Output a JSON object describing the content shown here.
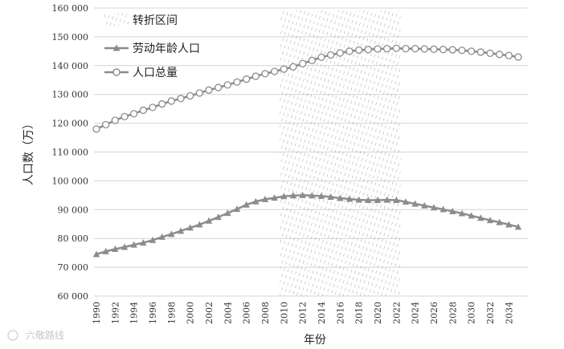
{
  "chart_data": {
    "type": "line",
    "xlabel": "年份",
    "ylabel": "人口数（万）",
    "ylim": [
      60000,
      160000
    ],
    "xlim": [
      1990,
      2035
    ],
    "y_ticks": [
      "60 000",
      "70 000",
      "80 000",
      "90 000",
      "100 000",
      "110 000",
      "120 000",
      "130 000",
      "140 000",
      "150 000",
      "160 000"
    ],
    "x_ticks": [
      "1990",
      "1992",
      "1994",
      "1996",
      "1998",
      "2000",
      "2002",
      "2004",
      "2006",
      "2008",
      "2010",
      "2012",
      "2014",
      "2016",
      "2018",
      "2020",
      "2022",
      "2024",
      "2026",
      "2028",
      "2030",
      "2032",
      "2034"
    ],
    "grid": true,
    "legend_position": "top-left",
    "shaded_region": {
      "name": "转折区间",
      "x_range": [
        2010,
        2022
      ]
    },
    "x": [
      1990,
      1991,
      1992,
      1993,
      1994,
      1995,
      1996,
      1997,
      1998,
      1999,
      2000,
      2001,
      2002,
      2003,
      2004,
      2005,
      2006,
      2007,
      2008,
      2009,
      2010,
      2011,
      2012,
      2013,
      2014,
      2015,
      2016,
      2017,
      2018,
      2019,
      2020,
      2021,
      2022,
      2023,
      2024,
      2025,
      2026,
      2027,
      2028,
      2029,
      2030,
      2031,
      2032,
      2033,
      2034,
      2035
    ],
    "series": [
      {
        "name": "劳动年龄人口",
        "marker": "triangle",
        "values": [
          74500,
          75500,
          76300,
          77000,
          77800,
          78500,
          79400,
          80500,
          81500,
          82600,
          83700,
          84800,
          86100,
          87400,
          88800,
          90200,
          91700,
          92800,
          93600,
          94100,
          94600,
          94900,
          95000,
          94900,
          94700,
          94400,
          94000,
          93700,
          93400,
          93300,
          93300,
          93400,
          93300,
          92700,
          92000,
          91400,
          90700,
          90100,
          89400,
          88700,
          87900,
          87100,
          86300,
          85600,
          84800,
          84000
        ]
      },
      {
        "name": "人口总量",
        "marker": "circle",
        "values": [
          118000,
          119500,
          121000,
          122300,
          123300,
          124500,
          125500,
          126700,
          127700,
          128600,
          129500,
          130500,
          131500,
          132400,
          133300,
          134300,
          135300,
          136300,
          137200,
          138000,
          138800,
          139600,
          140700,
          141800,
          142900,
          143700,
          144400,
          145000,
          145400,
          145600,
          145800,
          145900,
          146000,
          145900,
          145900,
          145800,
          145700,
          145600,
          145500,
          145300,
          145000,
          144700,
          144300,
          143900,
          143500,
          143000
        ]
      }
    ]
  },
  "watermark": "六敬路线",
  "colors": {
    "line": "#8c8c8c",
    "grid": "#d4d4d4",
    "marker_fill": "#ffffff",
    "shade": "#9a9a9a"
  }
}
